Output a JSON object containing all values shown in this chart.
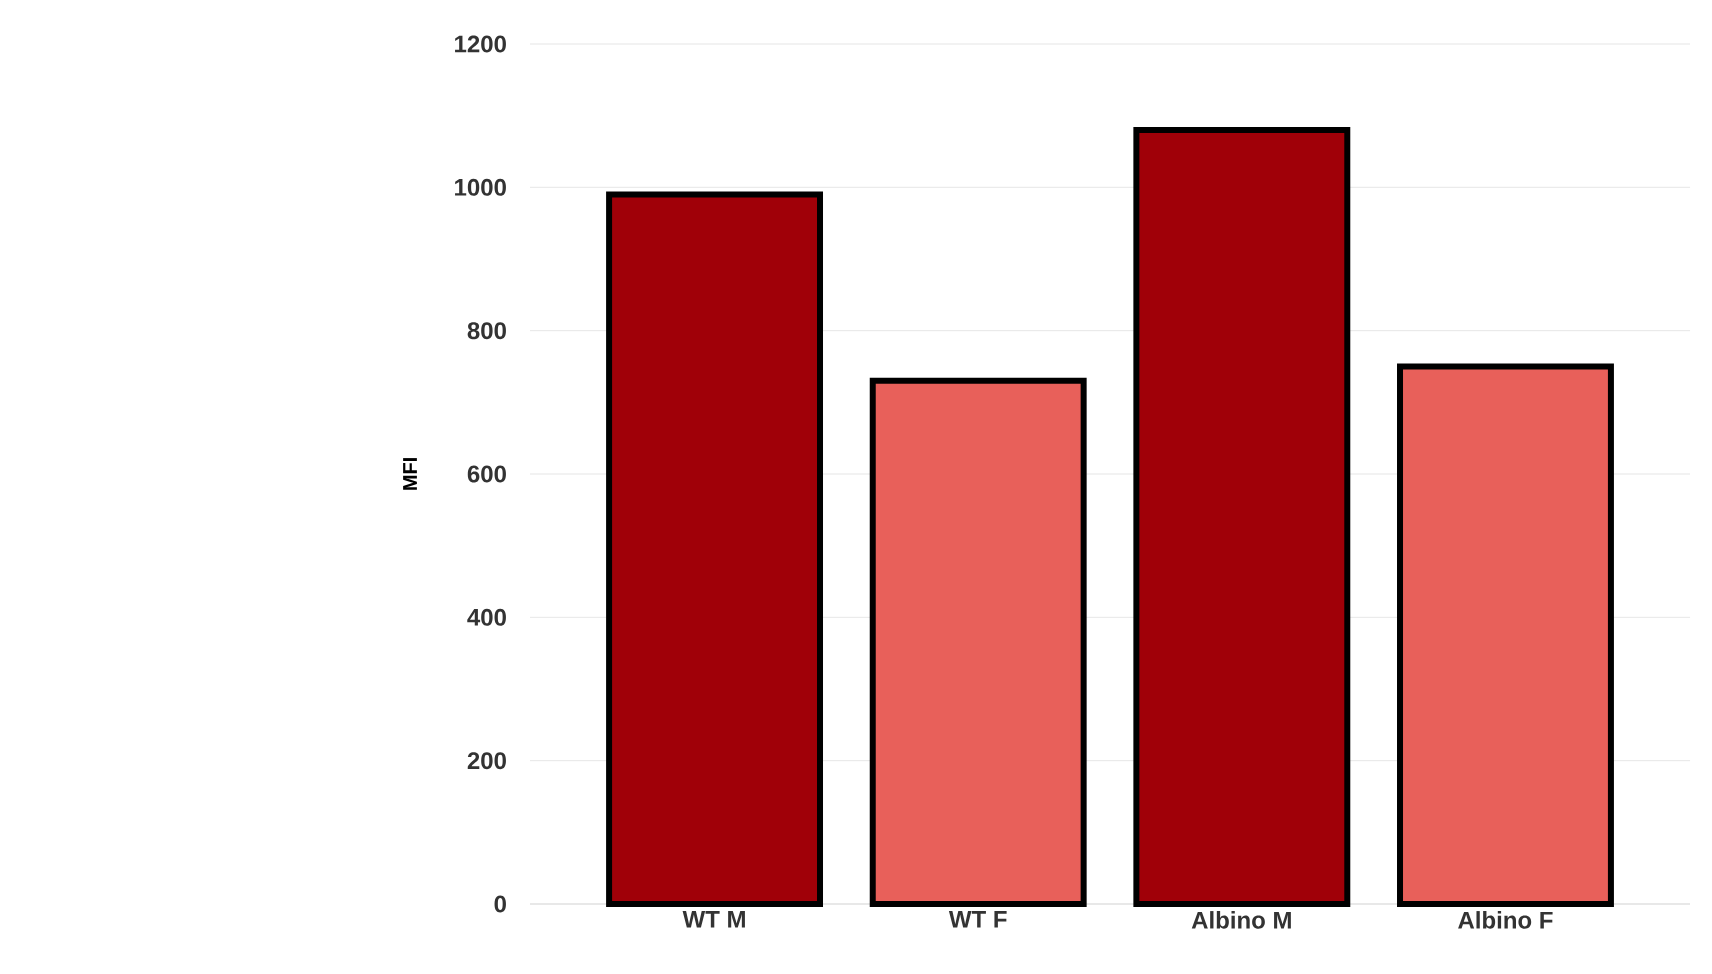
{
  "chart_data": {
    "type": "bar",
    "ylabel": "MFI",
    "categories": [
      "WT M",
      "WT F",
      "Albino M",
      "Albino F"
    ],
    "values": [
      990,
      730,
      1080,
      750
    ],
    "colors": [
      "#a00008",
      "#e8605a",
      "#a00008",
      "#e8605a"
    ],
    "ylim": [
      0,
      1200
    ],
    "yticks": [
      0,
      200,
      400,
      600,
      800,
      1000,
      1200
    ],
    "grid": "y"
  }
}
